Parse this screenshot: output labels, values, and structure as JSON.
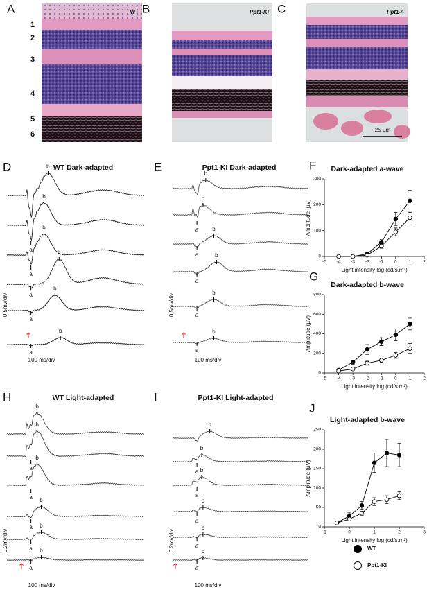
{
  "histology": [
    {
      "letter": "A",
      "genotype": "WT",
      "layers": [
        "1",
        "2",
        "3",
        "4",
        "5",
        "6"
      ]
    },
    {
      "letter": "B",
      "genotype": "Ppt1-KI"
    },
    {
      "letter": "C",
      "genotype": "Ppt1-/-",
      "scale_bar": "25 µm"
    }
  ],
  "erg_panels": [
    {
      "letter": "D",
      "title": "WT Dark-adapted",
      "scale": "0.5mv/div",
      "time": "100 ms/div",
      "traces": [
        {
          "b": "b"
        },
        {
          "a": "a",
          "b": "b"
        },
        {
          "a": "a",
          "b": "b"
        },
        {
          "a": "a",
          "b": "b"
        },
        {
          "a": "a",
          "b": "b"
        },
        {
          "a": "a",
          "b": "b"
        }
      ]
    },
    {
      "letter": "E",
      "title": "Ppt1-KI Dark-adapted",
      "scale": "0.5mv/div",
      "time": "100 ms/div",
      "traces": [
        {
          "b": "b"
        },
        {
          "a": "a",
          "b": "b"
        },
        {
          "a": "a",
          "b": "b"
        },
        {
          "a": "a",
          "b": "b"
        },
        {
          "a": "a",
          "b": "b"
        },
        {
          "a": "a",
          "b": "b"
        }
      ]
    },
    {
      "letter": "H",
      "title": "WT Light-adapted",
      "scale": "0.2mv/div",
      "time": "100 ms/div",
      "traces": [
        {
          "b": "b"
        },
        {
          "a": "a",
          "b": "b"
        },
        {
          "a": "a",
          "b": "b"
        },
        {
          "a": "a",
          "b": "b"
        },
        {
          "a": "a",
          "b": "b"
        },
        {
          "a": "a",
          "b": "b"
        }
      ]
    },
    {
      "letter": "I",
      "title": "Ppt1-KI Light-adapted",
      "scale": "0.2mv/div",
      "time": "100 ms/div",
      "traces": [
        {
          "b": "b"
        },
        {
          "a": "a",
          "b": "b"
        },
        {
          "a": "a",
          "b": "b"
        },
        {
          "a": "a",
          "b": "b"
        },
        {
          "a": "a",
          "b": "b"
        },
        {
          "a": "a",
          "b": "b"
        }
      ]
    }
  ],
  "chart_data": [
    {
      "type": "line",
      "panel_label": "F",
      "title": "Dark-adapted a-wave",
      "x_label": "Light intensity log (cd/s.m²)",
      "y_label": "Amplitude (µV)",
      "x": [
        -4,
        -3,
        -2,
        -1,
        0,
        1
      ],
      "xlim": [
        -5,
        2
      ],
      "xticks": [
        -5,
        -4,
        -3,
        -2,
        -1,
        0,
        1,
        2
      ],
      "ylim": [
        0,
        300
      ],
      "yticks": [
        0,
        100,
        200,
        300
      ],
      "series": [
        {
          "name": "WT",
          "color": "#000000",
          "values": [
            0,
            0,
            10,
            55,
            145,
            215
          ],
          "errors": [
            0,
            0,
            3,
            10,
            25,
            40
          ]
        },
        {
          "name": "Ppt1-KI",
          "color": "#ffffff",
          "values": [
            0,
            0,
            5,
            40,
            95,
            150
          ],
          "errors": [
            0,
            0,
            3,
            8,
            15,
            20
          ]
        }
      ]
    },
    {
      "type": "line",
      "panel_label": "G",
      "title": "Dark-adapted b-wave",
      "x_label": "Light intensity log (cd/s.m²)",
      "y_label": "Amplitude (µV)",
      "x": [
        -4,
        -3,
        -2,
        -1,
        0,
        1
      ],
      "xlim": [
        -5,
        2
      ],
      "xticks": [
        -5,
        -4,
        -3,
        -2,
        -1,
        0,
        1,
        2
      ],
      "ylim": [
        0,
        800
      ],
      "yticks": [
        0,
        200,
        400,
        600,
        800
      ],
      "series": [
        {
          "name": "WT",
          "color": "#000000",
          "values": [
            30,
            110,
            240,
            320,
            390,
            500
          ],
          "errors": [
            5,
            20,
            50,
            40,
            60,
            60
          ]
        },
        {
          "name": "Ppt1-KI",
          "color": "#ffffff",
          "values": [
            20,
            40,
            100,
            130,
            180,
            250
          ],
          "errors": [
            5,
            10,
            20,
            20,
            30,
            50
          ]
        }
      ]
    },
    {
      "type": "line",
      "panel_label": "J",
      "title": "Light-adapted b-wave",
      "x_label": "Light intensity log (cd/s.m²)",
      "y_label": "Amplitude (µV)",
      "x": [
        -0.5,
        0,
        0.5,
        1,
        1.5,
        2
      ],
      "xlim": [
        -1,
        3
      ],
      "xticks": [
        -1,
        0,
        1,
        2,
        3
      ],
      "ylim": [
        0,
        250
      ],
      "yticks": [
        0,
        50,
        100,
        150,
        200,
        250
      ],
      "series": [
        {
          "name": "WT",
          "color": "#000000",
          "values": [
            10,
            28,
            55,
            165,
            190,
            185
          ],
          "errors": [
            2,
            8,
            10,
            25,
            35,
            30
          ]
        },
        {
          "name": "Ppt1-KI",
          "color": "#ffffff",
          "values": [
            10,
            20,
            35,
            65,
            70,
            80
          ],
          "errors": [
            2,
            5,
            5,
            10,
            10,
            10
          ]
        }
      ]
    }
  ]
}
